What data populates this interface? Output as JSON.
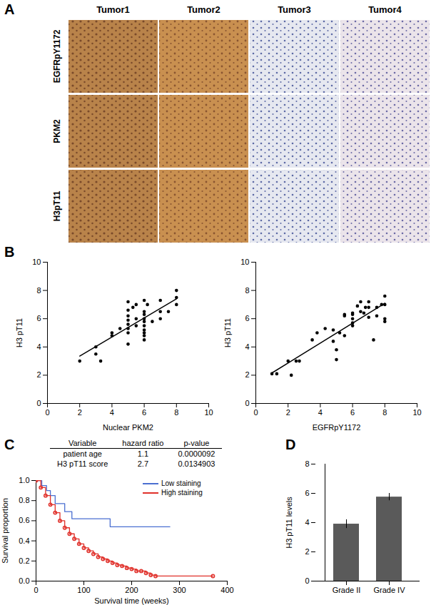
{
  "image_grid": {
    "panel_label": "A",
    "columns": [
      "Tumor1",
      "Tumor2",
      "Tumor3",
      "Tumor4"
    ],
    "rows": [
      "EGFRpY1172",
      "PKM2",
      "H3pT11"
    ]
  },
  "chart_data": [
    {
      "type": "scatter",
      "panel_label": "B",
      "x_label": "Nuclear PKM2",
      "y_label": "H3 pT11",
      "color": "#000000",
      "xlim": [
        0,
        10
      ],
      "xticks": [
        0,
        2,
        4,
        6,
        8,
        10
      ],
      "ylim": [
        0,
        10
      ],
      "yticks": [
        0,
        2,
        4,
        6,
        8,
        10
      ],
      "x": [
        2,
        3,
        3,
        3.3,
        4,
        4,
        4.5,
        5,
        5,
        5,
        5,
        5,
        5,
        5,
        5,
        5.3,
        5.5,
        5.5,
        5.5,
        6,
        6,
        6,
        6,
        6,
        6,
        6,
        6,
        6,
        6,
        6.2,
        6.5,
        7,
        7,
        7,
        7.5,
        8,
        8,
        8
      ],
      "values": [
        3.0,
        3.5,
        4.0,
        3.0,
        5.0,
        4.8,
        5.3,
        4.2,
        5.0,
        5.3,
        5.6,
        5.9,
        6.2,
        6.6,
        7.2,
        6.8,
        6.0,
        5.5,
        7.0,
        4.5,
        4.8,
        5.0,
        5.2,
        5.5,
        5.8,
        6.0,
        6.3,
        6.5,
        7.3,
        7.0,
        5.8,
        6.0,
        6.5,
        7.3,
        6.5,
        7.0,
        7.5,
        8.0
      ]
    },
    {
      "type": "scatter",
      "x_label": "EGFRpY1172",
      "y_label": "H3 pT11",
      "color": "#000000",
      "xlim": [
        0,
        10
      ],
      "xticks": [
        0,
        2,
        4,
        6,
        8,
        10
      ],
      "ylim": [
        0,
        10
      ],
      "yticks": [
        0,
        2,
        4,
        6,
        8,
        10
      ],
      "x": [
        1,
        1.3,
        2,
        2.2,
        2.5,
        2.7,
        3.5,
        3.8,
        4.3,
        4.8,
        4.8,
        5,
        5,
        5.2,
        5.5,
        5.5,
        5.5,
        6,
        6,
        6,
        6,
        6,
        6.3,
        6.5,
        6.5,
        6.7,
        6.8,
        7,
        7,
        7,
        7.3,
        7.5,
        7.5,
        7.8,
        8,
        8,
        8,
        8
      ],
      "values": [
        2.1,
        2.1,
        3.0,
        2.0,
        3.0,
        3.0,
        4.5,
        5.0,
        5.3,
        5.2,
        4.4,
        3.8,
        3.1,
        5.0,
        4.8,
        6.2,
        6.3,
        5.5,
        5.7,
        6.0,
        6.3,
        6.4,
        6.9,
        6.5,
        7.2,
        6.4,
        6.8,
        7.2,
        6.8,
        6.1,
        4.5,
        6.8,
        6.2,
        7.0,
        7.6,
        6.0,
        5.8,
        7.0
      ]
    },
    {
      "type": "line",
      "panel_label": "C",
      "x_label": "Survival time (weeks)",
      "y_label": "Survival proportion",
      "table": {
        "columns": [
          "Variable",
          "hazard ratio",
          "p-value"
        ],
        "rows": [
          [
            "patient age",
            "1.1",
            "0.0000092"
          ],
          [
            "H3 pT11 score",
            "2.7",
            "0.0134903"
          ]
        ]
      },
      "xlim": [
        0,
        400
      ],
      "xticks": [
        0,
        100,
        200,
        300,
        400
      ],
      "ylim": [
        0,
        1
      ],
      "yticks": [
        {
          "value": 0,
          "label": "0.0"
        },
        {
          "value": 0.2,
          "label": "0.2"
        },
        {
          "value": 0.4,
          "label": "0.4"
        },
        {
          "value": 0.6,
          "label": "0.6"
        },
        {
          "value": 0.8,
          "label": "0.8"
        },
        {
          "value": 1,
          "label": "1.0"
        }
      ],
      "legend": "top-right",
      "series": [
        {
          "name": "Low staining",
          "color": "#4a6fd1",
          "line_style": "step",
          "x": [
            0,
            12,
            22,
            30,
            40,
            60,
            75,
            155,
            280
          ],
          "values": [
            1,
            0.95,
            0.9,
            0.85,
            0.77,
            0.69,
            0.62,
            0.54,
            0.54
          ]
        },
        {
          "name": "High staining",
          "color": "#e0302a",
          "line_style": "step",
          "marker": "circle",
          "x": [
            0,
            10,
            20,
            30,
            40,
            50,
            60,
            70,
            80,
            90,
            100,
            110,
            120,
            130,
            140,
            150,
            160,
            170,
            180,
            190,
            200,
            210,
            220,
            230,
            240,
            250,
            370
          ],
          "values": [
            1,
            0.93,
            0.85,
            0.76,
            0.68,
            0.6,
            0.53,
            0.47,
            0.42,
            0.37,
            0.33,
            0.3,
            0.27,
            0.24,
            0.22,
            0.2,
            0.18,
            0.16,
            0.15,
            0.13,
            0.12,
            0.1,
            0.1,
            0.08,
            0.06,
            0.05,
            0.05
          ]
        }
      ]
    },
    {
      "type": "bar",
      "panel_label": "D",
      "y_label": "H3 pT11 levels",
      "color": "#5a5a5a",
      "categories": [
        "Grade II",
        "Grade IV"
      ],
      "values": [
        3.9,
        5.75
      ],
      "errors": [
        0.3,
        0.25
      ],
      "ylim": [
        0,
        8
      ],
      "yticks": [
        0,
        2,
        4,
        6,
        8
      ]
    }
  ]
}
